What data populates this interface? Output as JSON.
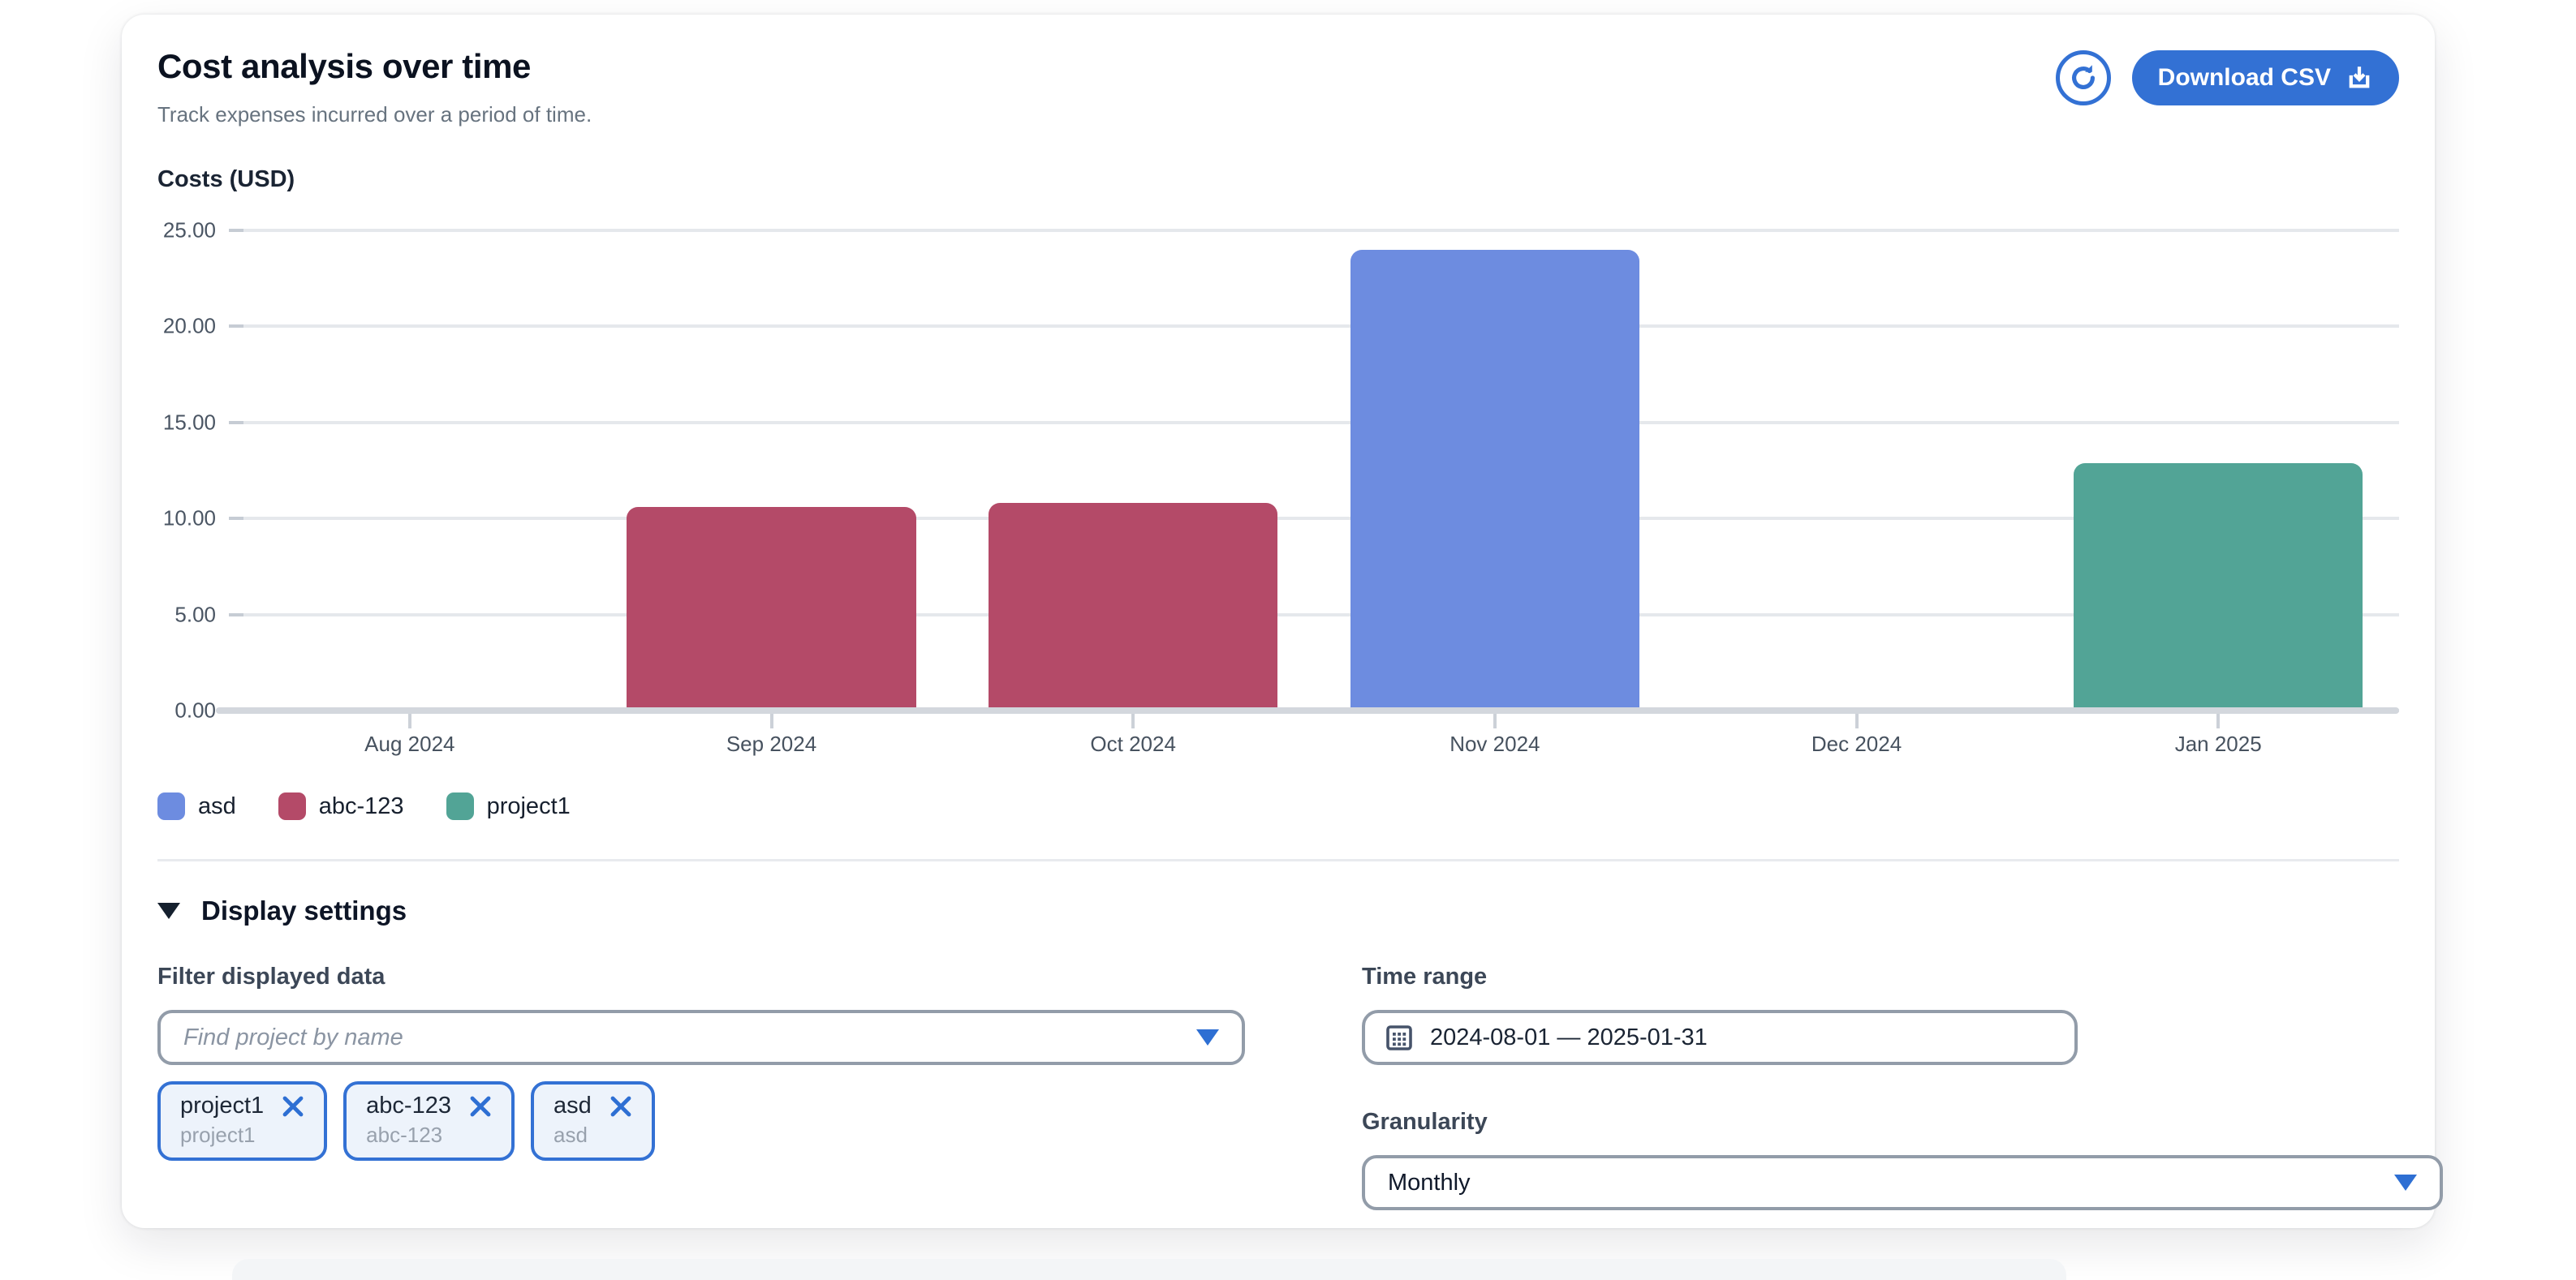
{
  "header": {
    "title": "Cost analysis over time",
    "subtitle": "Track expenses incurred over a period of time.",
    "download_label": "Download CSV"
  },
  "chart_data": {
    "type": "bar",
    "title": "Costs (USD)",
    "categories": [
      "Aug 2024",
      "Sep 2024",
      "Oct 2024",
      "Nov 2024",
      "Dec 2024",
      "Jan 2025"
    ],
    "series": [
      {
        "name": "asd",
        "color": "#6d8ce0",
        "values": [
          0,
          0,
          0,
          24.0,
          0,
          0
        ]
      },
      {
        "name": "abc-123",
        "color": "#b44a68",
        "values": [
          0,
          10.6,
          10.8,
          0,
          0,
          0
        ]
      },
      {
        "name": "project1",
        "color": "#52a496",
        "values": [
          0,
          0,
          0,
          0,
          0,
          12.9
        ]
      }
    ],
    "ylim": [
      0,
      25
    ],
    "yticks": [
      "25.00",
      "20.00",
      "15.00",
      "10.00",
      "5.00",
      "0.00"
    ],
    "grid": true,
    "legend_position": "bottom"
  },
  "settings": {
    "header": "Display settings",
    "filter": {
      "label": "Filter displayed data",
      "placeholder": "Find project by name",
      "chips": [
        {
          "name": "project1",
          "sub": "project1"
        },
        {
          "name": "abc-123",
          "sub": "abc-123"
        },
        {
          "name": "asd",
          "sub": "asd"
        }
      ]
    },
    "time_range": {
      "label": "Time range",
      "value": "2024-08-01 — 2025-01-31"
    },
    "granularity": {
      "label": "Granularity",
      "value": "Monthly"
    }
  },
  "colors": {
    "accent": "#3371d4",
    "grid": "#e5e8ec",
    "baseline": "#d3d7dd"
  }
}
